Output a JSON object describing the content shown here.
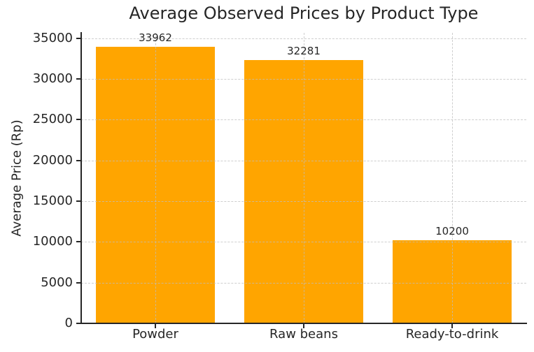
{
  "chart_data": {
    "type": "bar",
    "title": "Average Observed Prices by Product Type",
    "xlabel": "",
    "ylabel": "Average Price (Rp)",
    "categories": [
      "Powder",
      "Raw beans",
      "Ready-to-drink"
    ],
    "values": [
      33962,
      32281,
      10200
    ],
    "value_labels": [
      "33962",
      "32281",
      "10200"
    ],
    "yticks": [
      0,
      5000,
      10000,
      15000,
      20000,
      25000,
      30000,
      35000
    ],
    "ytick_labels": [
      "0",
      "5000",
      "10000",
      "15000",
      "20000",
      "25000",
      "30000",
      "35000"
    ],
    "ylim": [
      0,
      35660
    ],
    "bar_color": "#FFA500",
    "text_color": "#262626",
    "grid": {
      "visible": true,
      "style": "dashed",
      "color": "#bebebe",
      "axes": "both"
    },
    "legend": "none"
  }
}
